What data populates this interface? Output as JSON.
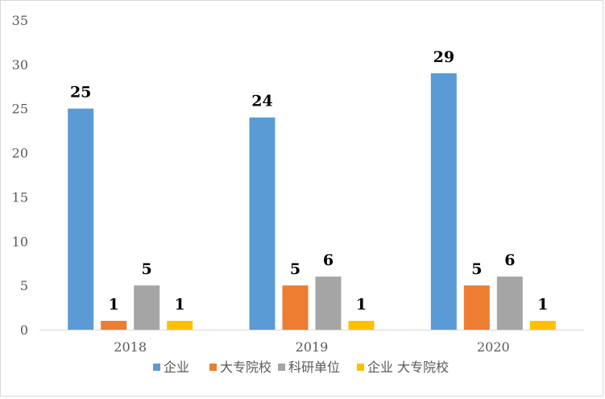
{
  "chart_data": {
    "type": "bar",
    "title": "",
    "xlabel": "",
    "ylabel": "",
    "categories": [
      "2018",
      "2019",
      "2020"
    ],
    "series": [
      {
        "name": "企业",
        "values": [
          25,
          24,
          29
        ],
        "color": "#5B9BD5"
      },
      {
        "name": "大专院校",
        "values": [
          1,
          5,
          5
        ],
        "color": "#ED7D31"
      },
      {
        "name": "科研单位",
        "values": [
          5,
          6,
          6
        ],
        "color": "#A5A5A5"
      },
      {
        "name": "企业 大专院校",
        "values": [
          1,
          1,
          1
        ],
        "color": "#FFC000"
      }
    ],
    "ylim": [
      0,
      35
    ],
    "yticks": [
      "0",
      "5",
      "10",
      "15",
      "20",
      "25",
      "30",
      "35"
    ],
    "grid": false,
    "legend_position": "bottom"
  }
}
